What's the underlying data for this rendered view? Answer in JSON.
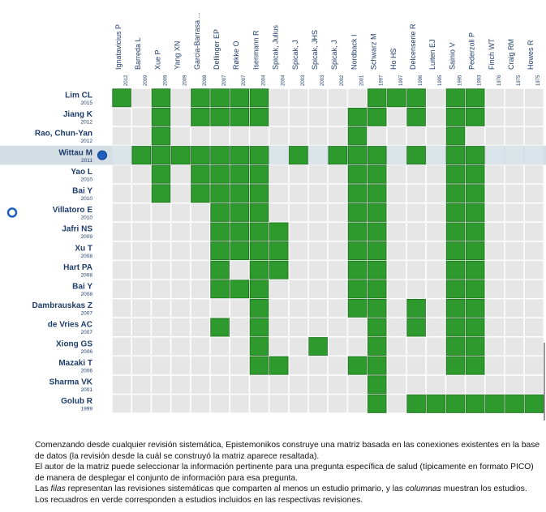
{
  "chart_data": {
    "type": "heatmap",
    "columns": [
      {
        "name": "Ignatavicius P",
        "year": "2012"
      },
      {
        "name": "Barreda L",
        "year": "2009"
      },
      {
        "name": "Xue P",
        "year": "2009"
      },
      {
        "name": "Yang XN",
        "year": "2009"
      },
      {
        "name": "Garcia-Barrasa ...",
        "year": "2008"
      },
      {
        "name": "Dellinger EP",
        "year": "2007"
      },
      {
        "name": "Røkke O",
        "year": "2007"
      },
      {
        "name": "Isenmann R",
        "year": "2004"
      },
      {
        "name": "Spicak, Julius",
        "year": "2004"
      },
      {
        "name": "Spicak, J",
        "year": "2003"
      },
      {
        "name": "Spicak, JHS",
        "year": "2003"
      },
      {
        "name": "Spicak, J",
        "year": "2002"
      },
      {
        "name": "Nordback I",
        "year": "2001"
      },
      {
        "name": "Schwarz M",
        "year": "1997"
      },
      {
        "name": "Ho HS",
        "year": "1997"
      },
      {
        "name": "Delcenserie R",
        "year": "1996"
      },
      {
        "name": "Luiten EJ",
        "year": "1995"
      },
      {
        "name": "Sainio V",
        "year": "1995"
      },
      {
        "name": "Pederzoli P",
        "year": "1993"
      },
      {
        "name": "Finch WT",
        "year": "1976"
      },
      {
        "name": "Craig RM",
        "year": "1975"
      },
      {
        "name": "Howes R",
        "year": "1975"
      }
    ],
    "rows": [
      {
        "name": "Lim CL",
        "year": "2015",
        "highlight": false,
        "marker": "",
        "included": [
          1,
          0,
          1,
          0,
          1,
          1,
          1,
          1,
          0,
          0,
          0,
          0,
          0,
          1,
          1,
          1,
          0,
          1,
          1,
          0,
          0,
          0
        ]
      },
      {
        "name": "Jiang K",
        "year": "2012",
        "highlight": false,
        "marker": "",
        "included": [
          0,
          0,
          1,
          0,
          1,
          1,
          1,
          1,
          0,
          0,
          0,
          0,
          1,
          1,
          0,
          1,
          0,
          1,
          1,
          0,
          0,
          0
        ]
      },
      {
        "name": "Rao, Chun-Yan",
        "year": "2012",
        "highlight": false,
        "marker": "",
        "included": [
          0,
          0,
          1,
          0,
          0,
          0,
          0,
          0,
          0,
          0,
          0,
          0,
          1,
          0,
          0,
          0,
          0,
          1,
          0,
          0,
          0,
          0
        ]
      },
      {
        "name": "Wittau M",
        "year": "2011",
        "highlight": true,
        "marker": "dot-right",
        "included": [
          0,
          1,
          1,
          1,
          1,
          1,
          1,
          1,
          0,
          1,
          0,
          1,
          1,
          1,
          0,
          1,
          0,
          1,
          1,
          0,
          0,
          0
        ]
      },
      {
        "name": "Yao L",
        "year": "2010",
        "highlight": false,
        "marker": "",
        "included": [
          0,
          0,
          1,
          0,
          1,
          1,
          1,
          1,
          0,
          0,
          0,
          0,
          1,
          1,
          0,
          0,
          0,
          1,
          1,
          0,
          0,
          0
        ]
      },
      {
        "name": "Bai Y",
        "year": "2010",
        "highlight": false,
        "marker": "",
        "included": [
          0,
          0,
          1,
          0,
          1,
          1,
          1,
          1,
          0,
          0,
          0,
          0,
          1,
          1,
          0,
          0,
          0,
          1,
          1,
          0,
          0,
          0
        ]
      },
      {
        "name": "Villatoro E",
        "year": "2010",
        "highlight": false,
        "marker": "ring-left",
        "included": [
          0,
          0,
          0,
          0,
          0,
          1,
          1,
          1,
          0,
          0,
          0,
          0,
          1,
          1,
          0,
          0,
          0,
          1,
          1,
          0,
          0,
          0
        ]
      },
      {
        "name": "Jafri NS",
        "year": "2009",
        "highlight": false,
        "marker": "",
        "included": [
          0,
          0,
          0,
          0,
          0,
          1,
          1,
          1,
          1,
          0,
          0,
          0,
          1,
          1,
          0,
          0,
          0,
          1,
          1,
          0,
          0,
          0
        ]
      },
      {
        "name": "Xu T",
        "year": "2008",
        "highlight": false,
        "marker": "",
        "included": [
          0,
          0,
          0,
          0,
          0,
          1,
          1,
          1,
          1,
          0,
          0,
          0,
          1,
          1,
          0,
          0,
          0,
          1,
          1,
          0,
          0,
          0
        ]
      },
      {
        "name": "Hart PA",
        "year": "2008",
        "highlight": false,
        "marker": "",
        "included": [
          0,
          0,
          0,
          0,
          0,
          1,
          0,
          1,
          1,
          0,
          0,
          0,
          1,
          1,
          0,
          0,
          0,
          1,
          1,
          0,
          0,
          0
        ]
      },
      {
        "name": "Bai Y",
        "year": "2008",
        "highlight": false,
        "marker": "",
        "included": [
          0,
          0,
          0,
          0,
          0,
          1,
          1,
          1,
          0,
          0,
          0,
          0,
          1,
          1,
          0,
          0,
          0,
          1,
          1,
          0,
          0,
          0
        ]
      },
      {
        "name": "Dambrauskas Z",
        "year": "2007",
        "highlight": false,
        "marker": "",
        "included": [
          0,
          0,
          0,
          0,
          0,
          0,
          0,
          1,
          0,
          0,
          0,
          0,
          1,
          1,
          0,
          1,
          0,
          1,
          1,
          0,
          0,
          0
        ]
      },
      {
        "name": "de Vries AC",
        "year": "2007",
        "highlight": false,
        "marker": "",
        "included": [
          0,
          0,
          0,
          0,
          0,
          1,
          0,
          1,
          0,
          0,
          0,
          0,
          0,
          1,
          0,
          1,
          0,
          1,
          1,
          0,
          0,
          0
        ]
      },
      {
        "name": "Xiong GS",
        "year": "2006",
        "highlight": false,
        "marker": "",
        "included": [
          0,
          0,
          0,
          0,
          0,
          0,
          0,
          1,
          0,
          0,
          1,
          0,
          0,
          1,
          0,
          0,
          0,
          1,
          1,
          0,
          0,
          0
        ]
      },
      {
        "name": "Mazaki T",
        "year": "2006",
        "highlight": false,
        "marker": "",
        "included": [
          0,
          0,
          0,
          0,
          0,
          0,
          0,
          1,
          1,
          0,
          0,
          0,
          1,
          1,
          0,
          0,
          0,
          1,
          1,
          0,
          0,
          0
        ]
      },
      {
        "name": "Sharma VK",
        "year": "2001",
        "highlight": false,
        "marker": "",
        "included": [
          0,
          0,
          0,
          0,
          0,
          0,
          0,
          0,
          0,
          0,
          0,
          0,
          0,
          1,
          0,
          0,
          0,
          0,
          0,
          0,
          0,
          0
        ]
      },
      {
        "name": "Golub R",
        "year": "1999",
        "highlight": false,
        "marker": "",
        "included": [
          0,
          0,
          0,
          0,
          0,
          0,
          0,
          0,
          0,
          0,
          0,
          0,
          0,
          1,
          0,
          1,
          1,
          1,
          1,
          1,
          1,
          1
        ]
      }
    ],
    "colors": {
      "included": "#2e9a2e",
      "included_border": "#1e6f1e",
      "empty": "#e6e6e6",
      "highlight_band": "#d3dee4",
      "row_label": "#1f3d6b",
      "column_label": "#1f3d6b",
      "marker": "#1f5fbf"
    },
    "grid": true,
    "legend": "none"
  },
  "caption": {
    "lines": [
      "Comenzando desde cualquier revisión sistemática, Epistemonikos construye una matriz basada en las conexiones existentes en la base",
      "de datos (la revisión desde la cuál se construyó la matriz aparece resaltada).",
      "El autor de la matriz puede seleccionar la información pertinente para una pregunta específica de salud (típicamente en formato PICO)",
      "de manera de desplegar el conjunto de información para esa pregunta.",
      "Las filas representan las revisiones sistemáticas que comparten al menos un estudio primario, y las columnas muestran los estudios.",
      "Los recuadros en verde corresponden a estudios incluidos en las respectivas revisiones."
    ]
  }
}
